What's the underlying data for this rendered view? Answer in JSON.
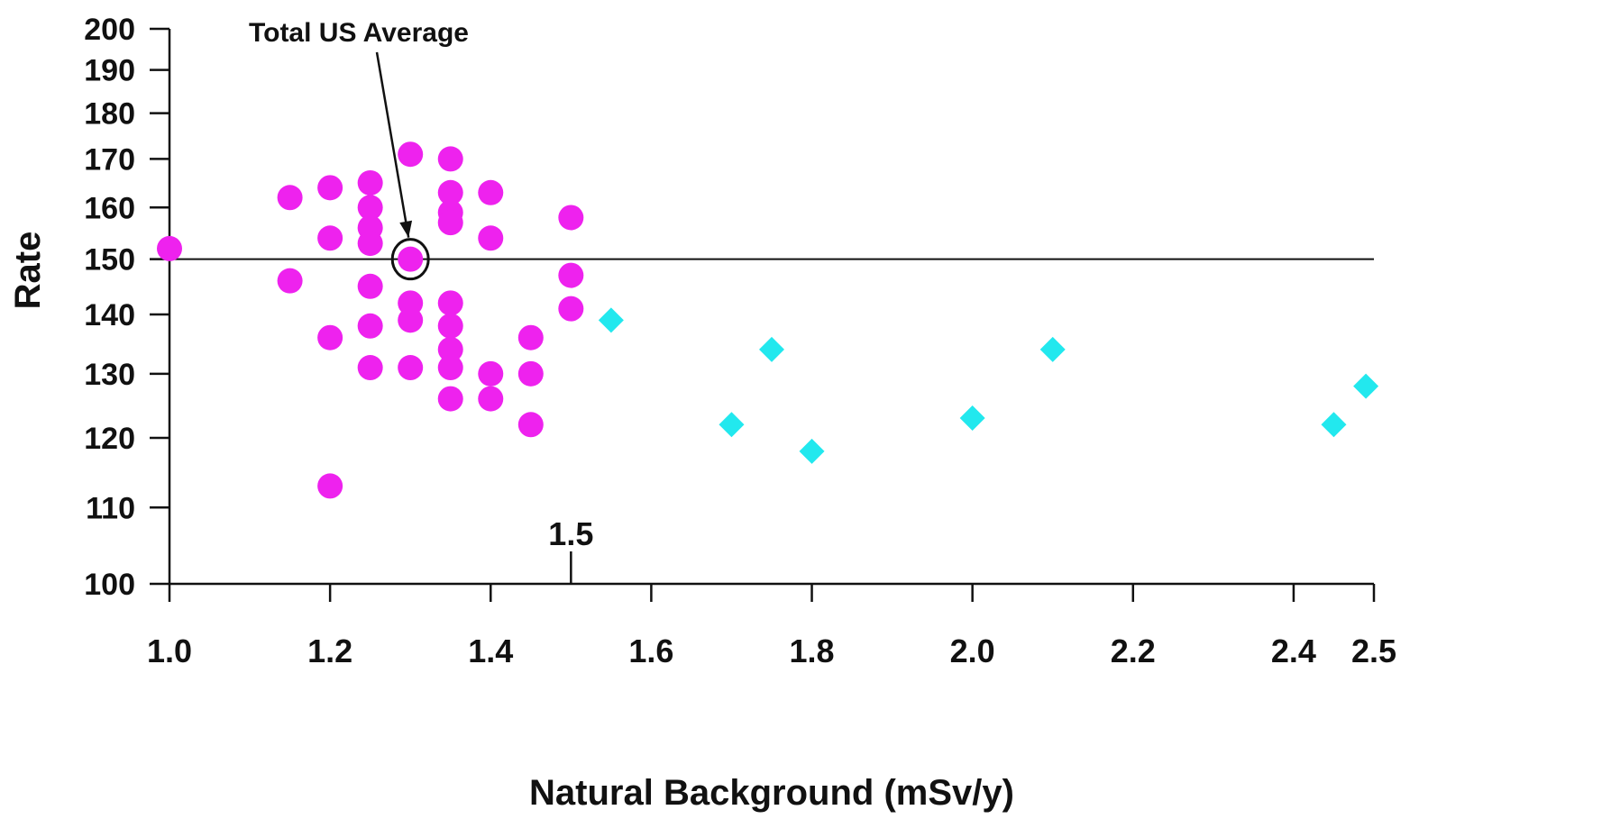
{
  "chart_data": {
    "type": "scatter",
    "xlabel": "Natural Background (mSv/y)",
    "ylabel": "Rate",
    "xlim": [
      1.0,
      2.5
    ],
    "ylim": [
      100,
      200
    ],
    "y_scale": "log",
    "grid": false,
    "legend": "none",
    "x_ticks": [
      1.0,
      1.2,
      1.4,
      1.6,
      1.8,
      2.0,
      2.2,
      2.4,
      2.5
    ],
    "x_tick_labels": [
      "1.0",
      "1.2",
      "1.4",
      "1.6",
      "1.8",
      "2.0",
      "2.2",
      "2.4",
      "2.5"
    ],
    "y_ticks": [
      100,
      110,
      120,
      130,
      140,
      150,
      160,
      170,
      180,
      190,
      200
    ],
    "y_tick_labels": [
      "100",
      "110",
      "120",
      "130",
      "140",
      "150",
      "160",
      "170",
      "180",
      "190",
      "200"
    ],
    "reference_line": {
      "y": 150,
      "label": "Total US Average"
    },
    "highlight": {
      "x": 1.3,
      "y": 150
    },
    "extra_tick": {
      "x": 1.5,
      "label": "1.5"
    },
    "series": [
      {
        "marker": "circle",
        "color": "#ee22ee",
        "points": [
          [
            1.0,
            152
          ],
          [
            1.15,
            162
          ],
          [
            1.15,
            146
          ],
          [
            1.2,
            164
          ],
          [
            1.2,
            154
          ],
          [
            1.2,
            136
          ],
          [
            1.2,
            113
          ],
          [
            1.25,
            165
          ],
          [
            1.25,
            160
          ],
          [
            1.25,
            156
          ],
          [
            1.25,
            153
          ],
          [
            1.25,
            145
          ],
          [
            1.25,
            138
          ],
          [
            1.25,
            131
          ],
          [
            1.3,
            171
          ],
          [
            1.3,
            150
          ],
          [
            1.3,
            142
          ],
          [
            1.3,
            139
          ],
          [
            1.3,
            131
          ],
          [
            1.35,
            170
          ],
          [
            1.35,
            163
          ],
          [
            1.35,
            159
          ],
          [
            1.35,
            157
          ],
          [
            1.35,
            142
          ],
          [
            1.35,
            138
          ],
          [
            1.35,
            134
          ],
          [
            1.35,
            131
          ],
          [
            1.35,
            126
          ],
          [
            1.4,
            163
          ],
          [
            1.4,
            154
          ],
          [
            1.4,
            130
          ],
          [
            1.4,
            126
          ],
          [
            1.45,
            136
          ],
          [
            1.45,
            130
          ],
          [
            1.45,
            122
          ],
          [
            1.5,
            158
          ],
          [
            1.5,
            147
          ],
          [
            1.5,
            141
          ]
        ]
      },
      {
        "marker": "diamond",
        "color": "#22e8ee",
        "points": [
          [
            1.55,
            139
          ],
          [
            1.7,
            122
          ],
          [
            1.75,
            134
          ],
          [
            1.8,
            118
          ],
          [
            2.0,
            123
          ],
          [
            2.1,
            134
          ],
          [
            2.45,
            122
          ],
          [
            2.49,
            128
          ]
        ]
      }
    ]
  }
}
